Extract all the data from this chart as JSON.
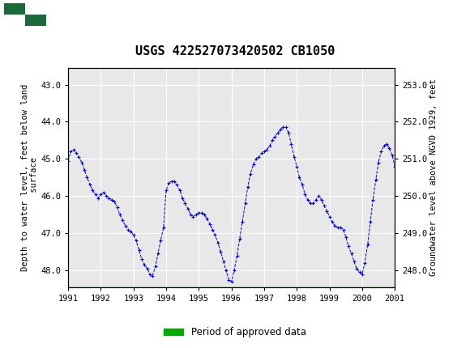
{
  "title": "USGS 422527073420502 CB1050",
  "ylabel_left": "Depth to water level, feet below land\n surface",
  "ylabel_right": "Groundwater level above NGVD 1929, feet",
  "xlim": [
    1991.0,
    2001.0
  ],
  "ylim_left": [
    48.45,
    42.55
  ],
  "ylim_right": [
    247.55,
    253.45
  ],
  "yticks_left": [
    43.0,
    44.0,
    45.0,
    46.0,
    47.0,
    48.0
  ],
  "yticks_right": [
    248.0,
    249.0,
    250.0,
    251.0,
    252.0,
    253.0
  ],
  "xticks": [
    1991,
    1992,
    1993,
    1994,
    1995,
    1996,
    1997,
    1998,
    1999,
    2000,
    2001
  ],
  "line_color": "#0000CC",
  "marker": "+",
  "marker_size": 3,
  "header_color": "#1a6b3c",
  "approved_color": "#00AA00",
  "background_color": "#ffffff",
  "plot_bg_color": "#e8e8e8",
  "grid_color": "#ffffff",
  "title_fontsize": 11,
  "axis_label_fontsize": 7.5,
  "tick_fontsize": 7.5,
  "data_x": [
    1991.0,
    1991.08,
    1991.17,
    1991.25,
    1991.33,
    1991.42,
    1991.5,
    1991.58,
    1991.67,
    1991.75,
    1991.83,
    1991.92,
    1992.0,
    1992.08,
    1992.17,
    1992.25,
    1992.33,
    1992.42,
    1992.5,
    1992.58,
    1992.67,
    1992.75,
    1992.83,
    1992.92,
    1993.0,
    1993.08,
    1993.17,
    1993.25,
    1993.33,
    1993.42,
    1993.5,
    1993.58,
    1993.67,
    1993.75,
    1993.83,
    1993.92,
    1994.0,
    1994.08,
    1994.17,
    1994.25,
    1994.33,
    1994.42,
    1994.5,
    1994.58,
    1994.67,
    1994.75,
    1994.83,
    1994.92,
    1995.0,
    1995.08,
    1995.17,
    1995.25,
    1995.33,
    1995.42,
    1995.5,
    1995.58,
    1995.67,
    1995.75,
    1995.83,
    1995.92,
    1996.0,
    1996.08,
    1996.17,
    1996.25,
    1996.33,
    1996.42,
    1996.5,
    1996.58,
    1996.67,
    1996.75,
    1996.83,
    1996.92,
    1997.0,
    1997.08,
    1997.17,
    1997.25,
    1997.33,
    1997.42,
    1997.5,
    1997.58,
    1997.67,
    1997.75,
    1997.83,
    1997.92,
    1998.0,
    1998.08,
    1998.17,
    1998.25,
    1998.33,
    1998.42,
    1998.5,
    1998.58,
    1998.67,
    1998.75,
    1998.83,
    1998.92,
    1999.0,
    1999.08,
    1999.17,
    1999.25,
    1999.33,
    1999.42,
    1999.5,
    1999.58,
    1999.67,
    1999.75,
    1999.83,
    1999.92,
    2000.0,
    2000.08,
    2000.17,
    2000.25,
    2000.33,
    2000.42,
    2000.5,
    2000.58,
    2000.67,
    2000.75,
    2000.83,
    2000.92,
    2001.0
  ],
  "data_y": [
    45.05,
    44.8,
    44.75,
    44.85,
    44.95,
    45.1,
    45.3,
    45.5,
    45.7,
    45.85,
    45.95,
    46.05,
    45.95,
    45.9,
    46.0,
    46.05,
    46.1,
    46.15,
    46.3,
    46.5,
    46.65,
    46.8,
    46.9,
    46.95,
    47.05,
    47.2,
    47.45,
    47.7,
    47.85,
    47.95,
    48.1,
    48.15,
    47.9,
    47.55,
    47.2,
    46.85,
    45.85,
    45.65,
    45.6,
    45.6,
    45.7,
    45.85,
    46.05,
    46.2,
    46.35,
    46.5,
    46.55,
    46.5,
    46.45,
    46.45,
    46.5,
    46.6,
    46.75,
    46.9,
    47.05,
    47.25,
    47.5,
    47.75,
    48.0,
    48.25,
    48.3,
    48.0,
    47.6,
    47.15,
    46.7,
    46.2,
    45.75,
    45.4,
    45.15,
    45.0,
    44.95,
    44.85,
    44.8,
    44.75,
    44.65,
    44.5,
    44.4,
    44.3,
    44.2,
    44.15,
    44.15,
    44.3,
    44.6,
    44.95,
    45.2,
    45.5,
    45.7,
    45.95,
    46.1,
    46.2,
    46.2,
    46.1,
    46.0,
    46.1,
    46.25,
    46.4,
    46.55,
    46.7,
    46.8,
    46.85,
    46.85,
    46.9,
    47.1,
    47.35,
    47.55,
    47.75,
    47.95,
    48.05,
    48.1,
    47.8,
    47.3,
    46.7,
    46.1,
    45.55,
    45.1,
    44.8,
    44.65,
    44.6,
    44.7,
    44.9,
    45.2
  ]
}
